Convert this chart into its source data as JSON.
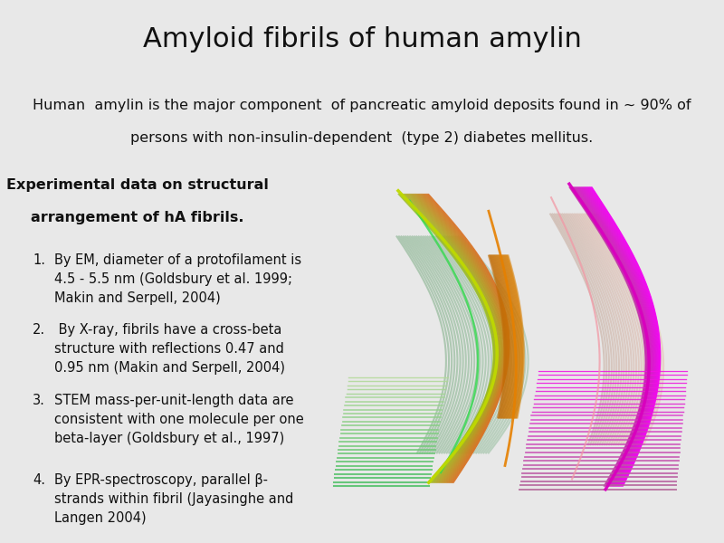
{
  "title": "Amyloid fibrils of human amylin",
  "title_fontsize": 22,
  "header_bg_color": "#aed6dc",
  "body_bg_color": "#e8e8e8",
  "subtitle_line1": "Human  amylin is the major component  of pancreatic amyloid deposits found in ~ 90% of",
  "subtitle_line2": "persons with non-insulin-dependent  (type 2) diabetes mellitus.",
  "subtitle_fontsize": 11.5,
  "section_header_line1": "Experimental data on structural",
  "section_header_line2": "arrangement of hA fibrils.",
  "section_header_fontsize": 11.5,
  "items": [
    "By EM, diameter of a protofilament is\n4.5 - 5.5 nm (Goldsbury et al. 1999;\nMakin and Serpell, 2004)",
    " By X-ray, fibrils have a cross-beta\nstructure with reflections 0.47 and\n0.95 nm (Makin and Serpell, 2004)",
    "STEM mass-per-unit-length data are\nconsistent with one molecule per one\nbeta-layer (Goldsbury et al., 1997)",
    "By EPR-spectroscopy, parallel β-\nstrands within fibril (Jayasinghe and\nLangen 2004)"
  ],
  "item_fontsize": 10.5,
  "text_color": "#111111",
  "figure_width": 8.0,
  "figure_height": 6.0
}
